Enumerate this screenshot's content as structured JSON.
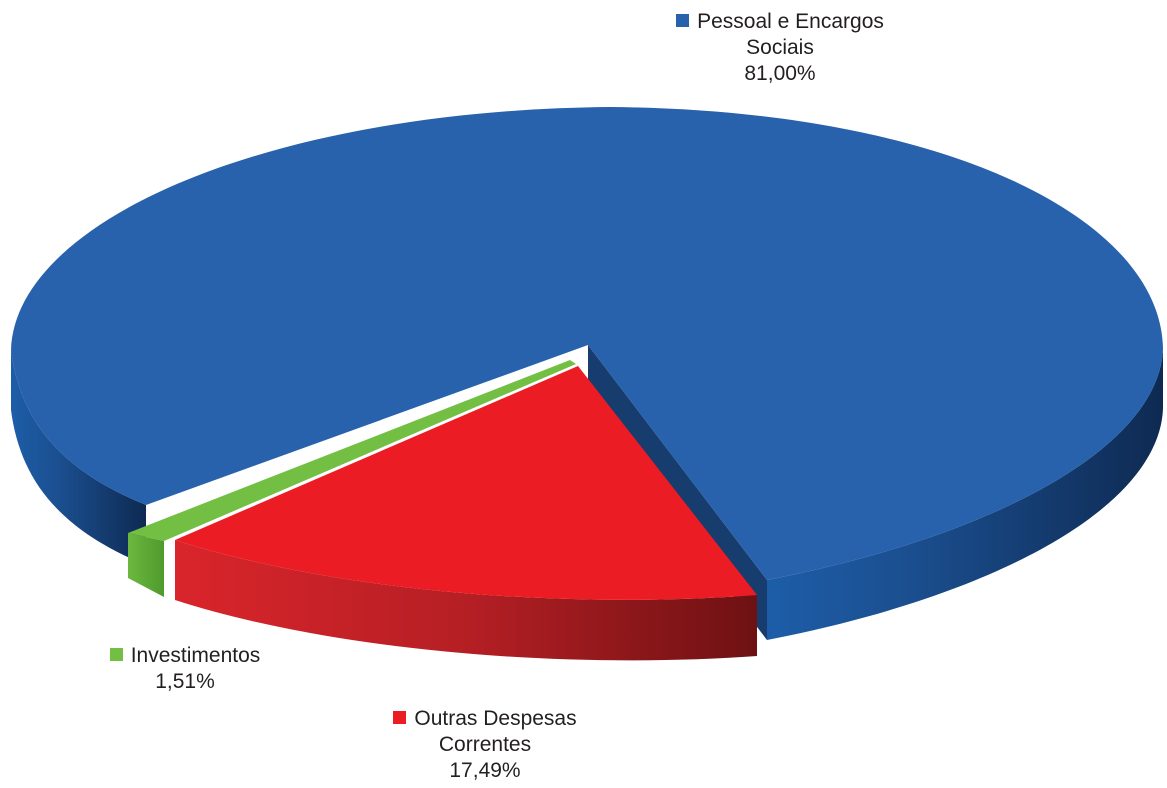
{
  "chart_data": {
    "type": "pie",
    "title": "",
    "slices": [
      {
        "label_lines": [
          "Pessoal e Encargos",
          "Sociais"
        ],
        "value": 81.0,
        "value_label": "81,00%",
        "color": "#2862ad"
      },
      {
        "label_lines": [
          "Outras Despesas",
          "Correntes"
        ],
        "value": 17.49,
        "value_label": "17,49%",
        "color": "#ec1c24"
      },
      {
        "label_lines": [
          "Investimentos"
        ],
        "value": 1.51,
        "value_label": "1,51%",
        "color": "#72bf44"
      }
    ],
    "style": "3d-exploded",
    "legend": "data labels beside slices"
  }
}
